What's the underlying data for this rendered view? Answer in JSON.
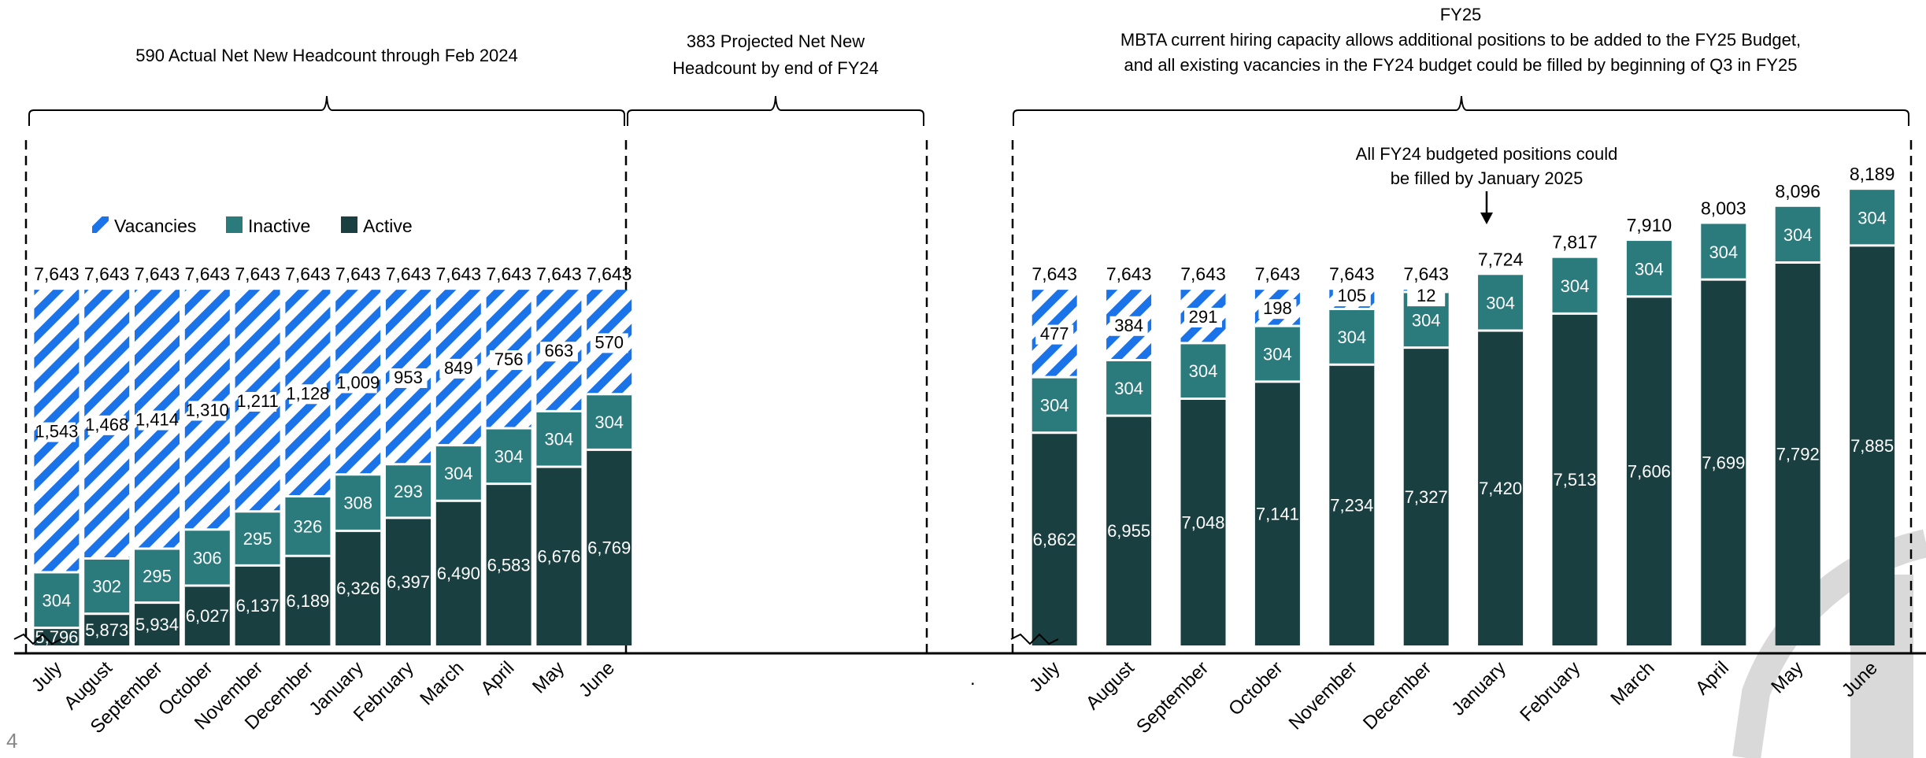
{
  "page_number": "4",
  "headers": {
    "actual": "590 Actual Net New Headcount through Feb 2024",
    "projected_line1": "383 Projected Net New",
    "projected_line2": "Headcount by end of FY24",
    "fy25_title": "FY25",
    "fy25_line1": "MBTA current hiring capacity allows additional positions to be added to the FY25 Budget,",
    "fy25_line2": "and all existing vacancies in the FY24 budget could be filled by beginning of Q3 in FY25"
  },
  "annotation": {
    "line1": "All FY24 budgeted positions could",
    "line2": "be filled by January 2025"
  },
  "separator": ".",
  "colors": {
    "active": "#1a3f40",
    "inactive": "#2b7a7c",
    "vacancy": "#1a73e8",
    "watermark": "#d4d4d4"
  },
  "chart_data": {
    "type": "bar",
    "stacked": true,
    "legend": [
      "Vacancies",
      "Inactive",
      "Active"
    ],
    "legend_position": "top-left",
    "axis_break": true,
    "groups": [
      {
        "name": "FY24",
        "categories": [
          "July",
          "August",
          "September",
          "October",
          "November",
          "December",
          "January",
          "February",
          "March",
          "April",
          "May",
          "June"
        ],
        "active": [
          5796,
          5873,
          5934,
          6027,
          6137,
          6189,
          6326,
          6397,
          6490,
          6583,
          6676,
          6769
        ],
        "active_labels": [
          "5,796",
          "5,873",
          "5,934",
          "6,027",
          "6,137",
          "6,189",
          "6,326",
          "6,397",
          "6,490",
          "6,583",
          "6,676",
          "6,769"
        ],
        "inactive": [
          304,
          302,
          295,
          306,
          295,
          326,
          308,
          293,
          304,
          304,
          304,
          304
        ],
        "vacancies": [
          1543,
          1468,
          1414,
          1310,
          1211,
          1128,
          1009,
          953,
          849,
          756,
          663,
          570
        ],
        "vacancy_labels": [
          "1,543",
          "1,468",
          "1,414",
          "1,310",
          "1,211",
          "1,128",
          "1,009",
          "953",
          "849",
          "756",
          "663",
          "570"
        ],
        "totals": [
          "7,643",
          "7,643",
          "7,643",
          "7,643",
          "7,643",
          "7,643",
          "7,643",
          "7,643",
          "7,643",
          "7,643",
          "7,643",
          "7,643"
        ]
      },
      {
        "name": "FY25",
        "categories": [
          "July",
          "August",
          "September",
          "October",
          "November",
          "December",
          "January",
          "February",
          "March",
          "April",
          "May",
          "June"
        ],
        "active": [
          6862,
          6955,
          7048,
          7141,
          7234,
          7327,
          7420,
          7513,
          7606,
          7699,
          7792,
          7885
        ],
        "active_labels": [
          "6,862",
          "6,955",
          "7,048",
          "7,141",
          "7,234",
          "7,327",
          "7,420",
          "7,513",
          "7,606",
          "7,699",
          "7,792",
          "7,885"
        ],
        "inactive": [
          304,
          304,
          304,
          304,
          304,
          304,
          304,
          304,
          304,
          304,
          304,
          304
        ],
        "vacancies": [
          477,
          384,
          291,
          198,
          105,
          12,
          0,
          0,
          0,
          0,
          0,
          0
        ],
        "vacancy_labels": [
          "477",
          "384",
          "291",
          "198",
          "105",
          "12",
          "",
          "",
          "",
          "",
          "",
          ""
        ],
        "totals": [
          "7,643",
          "7,643",
          "7,643",
          "7,643",
          "7,643",
          "7,643",
          "7,724",
          "7,817",
          "7,910",
          "8,003",
          "8,096",
          "8,189"
        ]
      }
    ]
  }
}
